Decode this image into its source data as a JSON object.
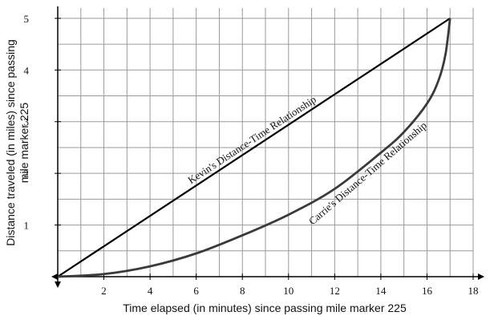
{
  "chart_data": {
    "type": "line",
    "xlabel": "Time elapsed (in minutes) since passing mile marker 225",
    "ylabel_lines": [
      "Distance traveled (in miles) since passing",
      "mile marker 225"
    ],
    "xlim": [
      0,
      18
    ],
    "ylim": [
      0,
      5.2
    ],
    "x_ticks": [
      2,
      4,
      6,
      8,
      10,
      12,
      14,
      16,
      18
    ],
    "x_tick_labels": [
      "2",
      "4",
      "6",
      "8",
      "10",
      "12",
      "14",
      "16",
      "18"
    ],
    "y_ticks": [
      1,
      2,
      3,
      4,
      5
    ],
    "y_tick_labels": [
      "1",
      "2",
      "3",
      "4",
      "5"
    ],
    "grid": true,
    "grid_x_step": 1,
    "grid_y_step": 0.5,
    "series": [
      {
        "name": "Kevin's Distance-Time Relationship",
        "x": [
          0,
          17
        ],
        "y": [
          0,
          5
        ]
      },
      {
        "name": "Carrie's Distance-Time Relationship",
        "x": [
          0,
          2,
          4,
          6,
          8,
          10,
          12,
          14,
          15,
          16,
          16.5,
          16.8,
          17
        ],
        "y": [
          0,
          0.05,
          0.2,
          0.45,
          0.8,
          1.2,
          1.7,
          2.4,
          2.8,
          3.35,
          3.8,
          4.3,
          5
        ]
      }
    ]
  }
}
